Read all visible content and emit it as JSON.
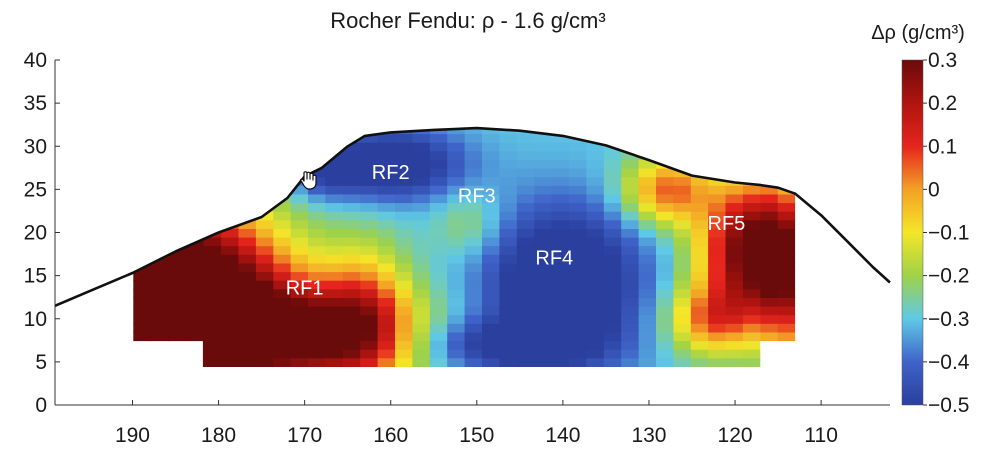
{
  "chart_data": {
    "type": "heatmap",
    "title": "Rocher Fendu: ρ - 1.6 g/cm³",
    "xlabel": "",
    "ylabel": "",
    "x_ticks": [
      190,
      180,
      170,
      160,
      150,
      140,
      130,
      120,
      110
    ],
    "y_ticks": [
      0,
      5,
      10,
      15,
      20,
      25,
      30,
      35,
      40
    ],
    "xlim": [
      199,
      102
    ],
    "ylim": [
      0,
      40
    ],
    "x_reversed": true,
    "grid": false,
    "colorbar": {
      "label": "Δρ (g/cm³)",
      "range": [
        -0.5,
        0.3
      ],
      "ticks": [
        0.3,
        0.2,
        0.1,
        0,
        -0.1,
        -0.2,
        -0.3,
        -0.4,
        -0.5
      ],
      "tick_labels": [
        "0.3",
        "0.2",
        "0.1",
        "0",
        "−0.1",
        "−0.2",
        "−0.3",
        "−0.4",
        "−0.5"
      ],
      "colors": [
        "#2a3f9e",
        "#3f63c9",
        "#5fc9e6",
        "#9fd248",
        "#f4e628",
        "#f3a126",
        "#e5251e",
        "#b0140f",
        "#6a0b0b"
      ]
    },
    "zones": [
      {
        "label": "RF1",
        "x": 170,
        "y": 12.8
      },
      {
        "label": "RF2",
        "x": 160,
        "y": 26.2
      },
      {
        "label": "RF3",
        "x": 150,
        "y": 23.5
      },
      {
        "label": "RF4",
        "x": 141,
        "y": 16.3
      },
      {
        "label": "RF5",
        "x": 121,
        "y": 20.3
      }
    ],
    "surface_profile": {
      "x": [
        199,
        195,
        190,
        185,
        180,
        175,
        172,
        170,
        168,
        165,
        163,
        160,
        155,
        150,
        145,
        140,
        135,
        130,
        125,
        120,
        117,
        115,
        113,
        110,
        107,
        104,
        102
      ],
      "y": [
        11.5,
        13.2,
        15.3,
        17.8,
        20.0,
        21.8,
        24.0,
        26.5,
        27.5,
        30.0,
        31.2,
        31.6,
        31.9,
        32.1,
        31.8,
        31.2,
        30.1,
        28.4,
        26.6,
        25.8,
        25.5,
        25.2,
        24.5,
        22.0,
        19.0,
        16.0,
        14.2
      ]
    },
    "density_field": {
      "x_min": 102,
      "x_max": 199,
      "nx": 49,
      "y_min": 0,
      "y_max": 40,
      "ny": 41,
      "anomalies": [
        {
          "x": 185,
          "y": 13,
          "dx": 12,
          "dy": 10,
          "a": 0.9
        },
        {
          "x": 170,
          "y": 8,
          "dx": 12,
          "dy": 6,
          "a": 0.55
        },
        {
          "x": 163,
          "y": 11,
          "dx": 5,
          "dy": 8,
          "a": 0.25
        },
        {
          "x": 160,
          "y": 28,
          "dx": 8,
          "dy": 4,
          "a": -0.3
        },
        {
          "x": 168,
          "y": 27,
          "dx": 4,
          "dy": 3,
          "a": -0.15
        },
        {
          "x": 140,
          "y": 14,
          "dx": 9,
          "dy": 9,
          "a": -0.35
        },
        {
          "x": 147,
          "y": 7,
          "dx": 10,
          "dy": 3,
          "a": -0.2
        },
        {
          "x": 151,
          "y": 21,
          "dx": 4,
          "dy": 4,
          "a": 0.1
        },
        {
          "x": 118,
          "y": 18,
          "dx": 6,
          "dy": 8,
          "a": 0.65
        },
        {
          "x": 128,
          "y": 25,
          "dx": 5,
          "dy": 4,
          "a": 0.35
        },
        {
          "x": 123,
          "y": 10,
          "dx": 5,
          "dy": 4,
          "a": 0.3
        },
        {
          "x": 114,
          "y": 14,
          "dx": 3,
          "dy": 10,
          "a": 0.3
        }
      ],
      "base": -0.3
    }
  }
}
